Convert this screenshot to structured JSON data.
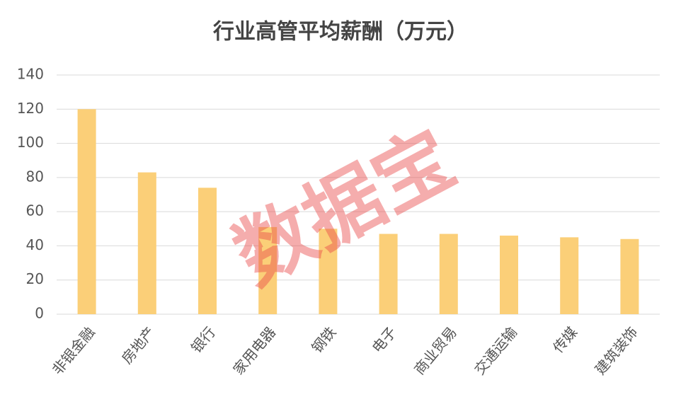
{
  "chart_data": {
    "type": "bar",
    "title": "行业高管平均薪酬（万元）",
    "watermark": "数据宝",
    "categories": [
      "非银金融",
      "房地产",
      "银行",
      "家用电器",
      "钢铁",
      "电子",
      "商业贸易",
      "交通运输",
      "传媒",
      "建筑装饰"
    ],
    "values": [
      120,
      83,
      74,
      51,
      50,
      47,
      47,
      46,
      45,
      44
    ],
    "color": "#fbcf78",
    "ylim": [
      0,
      140
    ],
    "yticks": [
      0,
      20,
      40,
      60,
      80,
      100,
      120,
      140
    ],
    "grid": true
  }
}
